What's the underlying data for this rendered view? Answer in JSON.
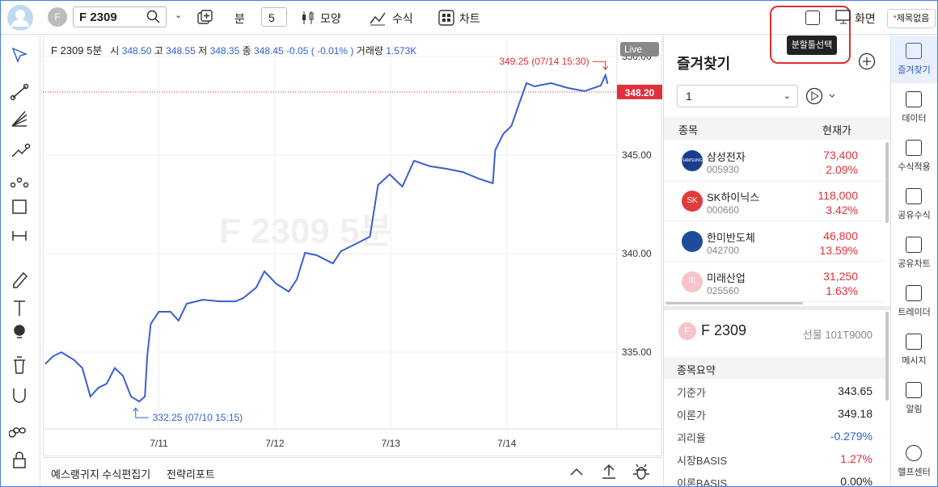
{
  "toolbar": {
    "avatar_letter": "F",
    "symbol": "F 2309",
    "period_unit": "분",
    "period": "5",
    "shape": "모양",
    "formula": "수식",
    "chart": "차트",
    "screen": "화면",
    "title_mark": "*",
    "title": "제목없음",
    "tooltip": "분할틀선택"
  },
  "quote": {
    "open_label": "시",
    "open": "348.50",
    "high_label": "고",
    "high": "348.55",
    "low_label": "저",
    "low": "348.35",
    "close_label": "종",
    "close": "348.45",
    "change": "-0.05",
    "change_pct": "( -0.01% )",
    "volume_label": "거래량",
    "volume": "1.573K"
  },
  "chart_data": {
    "type": "line",
    "title": "F 2309 5분",
    "live": "Live",
    "color": "#3a5fcd",
    "grid": true,
    "x": [
      10.02,
      10.09,
      10.16,
      10.27,
      10.34,
      10.41,
      10.48,
      10.55,
      10.62,
      10.69,
      10.76,
      10.83,
      10.88,
      10.9,
      10.93,
      11.0,
      11.1,
      11.17,
      11.24,
      11.38,
      11.52,
      11.66,
      11.73,
      11.84,
      11.91,
      12.01,
      12.12,
      12.19,
      12.26,
      12.36,
      12.5,
      12.57,
      12.71,
      12.82,
      12.89,
      12.99,
      13.1,
      13.2,
      13.34,
      13.48,
      13.62,
      13.76,
      13.88,
      13.9,
      13.97,
      14.04,
      14.1,
      14.17,
      14.24,
      14.38,
      14.53,
      14.67,
      14.81,
      14.85,
      14.87
    ],
    "values": [
      334.4,
      334.8,
      335.0,
      334.6,
      334.2,
      332.75,
      333.2,
      333.4,
      334.2,
      333.8,
      332.75,
      332.5,
      332.75,
      334.8,
      336.43,
      337.05,
      337.05,
      336.6,
      337.46,
      337.66,
      337.58,
      337.58,
      337.75,
      338.28,
      339.1,
      338.48,
      338.07,
      338.69,
      340.04,
      339.92,
      339.5,
      340.12,
      340.53,
      340.86,
      343.48,
      344.02,
      343.4,
      344.71,
      344.43,
      344.3,
      344.14,
      343.8,
      343.57,
      345.25,
      346.07,
      346.48,
      347.5,
      348.65,
      348.48,
      348.65,
      348.4,
      348.24,
      348.52,
      349.05,
      348.61
    ],
    "xlim": [
      10.0,
      14.95
    ],
    "xticks": [
      {
        "value": 11,
        "label": "7/11"
      },
      {
        "value": 12,
        "label": "7/12"
      },
      {
        "value": 13,
        "label": "7/13"
      },
      {
        "value": 14,
        "label": "7/14"
      }
    ],
    "ylim": [
      331.11,
      350.98
    ],
    "yticks": [
      {
        "value": 335,
        "label": "335.00"
      },
      {
        "value": 340,
        "label": "340.00"
      },
      {
        "value": 345,
        "label": "345.00"
      },
      {
        "value": 350,
        "label": "350.00"
      }
    ],
    "current_price": {
      "value": 348.2,
      "label": "348.20",
      "color": "#e0303d"
    },
    "high": {
      "x": 14.85,
      "value": 349.25,
      "label": "349.25 (07/14 15:30)"
    },
    "low": {
      "x": 10.8,
      "value": 332.25,
      "label": "332.25 (07/10 15:15)"
    }
  },
  "bottom": {
    "editor": "예스랭귀지 수식편집기",
    "report": "전략리포트"
  },
  "favorites": {
    "title": "즐겨찾기",
    "group": "1",
    "header": [
      "종목",
      "현재가"
    ],
    "rows": [
      {
        "logo": "SAMSUNG",
        "name": "삼성전자",
        "code": "005930",
        "price": "73,400",
        "change": "2.09%"
      },
      {
        "logo": "SK",
        "name": "SK하이닉스",
        "code": "000660",
        "price": "118,000",
        "change": "3.42%"
      },
      {
        "name": "한미반도체",
        "code": "042700",
        "price": "46,800",
        "change": "13.59%"
      },
      {
        "logo": "미",
        "name": "미래산업",
        "code": "025560",
        "price": "31,250",
        "change": "1.63%"
      }
    ]
  },
  "summary": {
    "letter": "F",
    "symbol": "F 2309",
    "code": "선물 101T9000",
    "title": "종목요약",
    "rows": [
      [
        "기준가",
        "343.65"
      ],
      [
        "이론가",
        "349.18"
      ],
      [
        "괴리율",
        "-0.279%"
      ],
      [
        "시장BASIS",
        "1.27%"
      ],
      [
        "이론BASIS",
        "0.00%"
      ]
    ]
  },
  "sidebar": [
    "즐겨찾기",
    "데이터",
    "수식적용",
    "공유수식",
    "공유차트",
    "트레이더",
    "메시지",
    "알림",
    "헬프센터"
  ]
}
